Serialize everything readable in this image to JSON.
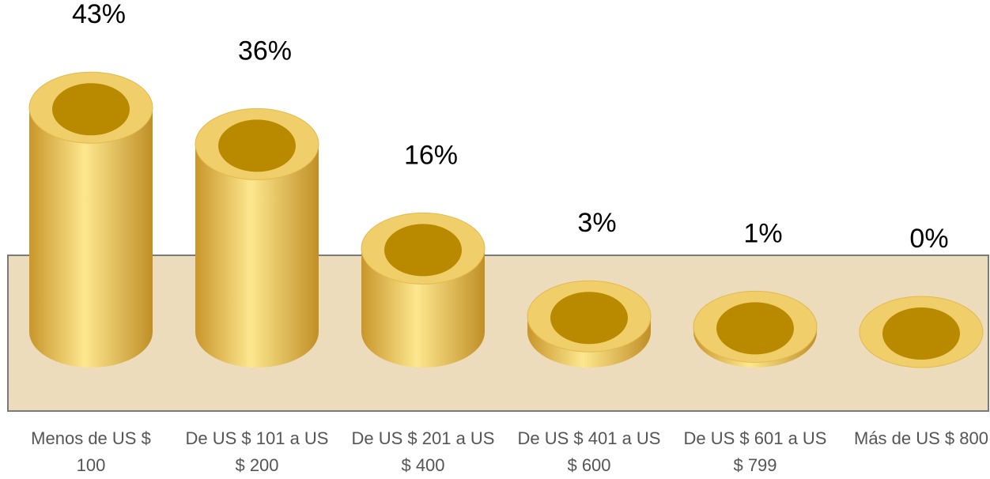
{
  "chart_data": {
    "type": "bar",
    "categories": [
      "Menos de US $ 100",
      "De US $ 101 a US $ 200",
      "De US $ 201 a US $ 400",
      "De US $ 401 a US $ 600",
      "De US $ 601 a US $ 799",
      "Más de US $ 800"
    ],
    "values": [
      43,
      36,
      16,
      3,
      1,
      0
    ],
    "value_labels": [
      "43%",
      "36%",
      "16%",
      "3%",
      "1%",
      "0%"
    ],
    "color": "#f0cf6a"
  }
}
